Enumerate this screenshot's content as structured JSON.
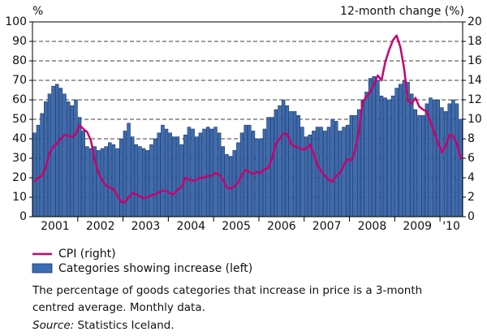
{
  "chart_data": {
    "type": "bar_line",
    "y_unit_label": "%",
    "y2_unit_label": "12-month change (%)",
    "x_labels": [
      "2001",
      "2002",
      "2003",
      "2004",
      "2005",
      "2006",
      "2007",
      "2008",
      "2009",
      "'10"
    ],
    "ylim": [
      0,
      100
    ],
    "yticks": [
      0,
      10,
      20,
      30,
      40,
      50,
      60,
      70,
      80,
      90,
      100
    ],
    "y2lim": [
      0,
      20
    ],
    "y2ticks": [
      0,
      2,
      4,
      6,
      8,
      10,
      12,
      14,
      16,
      18,
      20
    ],
    "grid": true,
    "series": [
      {
        "name": "Categories showing increase (left)",
        "type": "bar",
        "color": "#3a6db5",
        "values": [
          43,
          47,
          53,
          59,
          63,
          67,
          68,
          66,
          63,
          59,
          57,
          60,
          51,
          44,
          36,
          35,
          36,
          34,
          35,
          36,
          38,
          37,
          35,
          40,
          44,
          48,
          41,
          37,
          36,
          35,
          34,
          37,
          40,
          43,
          47,
          45,
          43,
          41,
          41,
          37,
          42,
          46,
          45,
          41,
          43,
          45,
          46,
          45,
          46,
          43,
          36,
          32,
          31,
          34,
          38,
          43,
          47,
          47,
          44,
          40,
          40,
          45,
          51,
          51,
          55,
          57,
          60,
          57,
          54,
          54,
          52,
          46,
          41,
          42,
          44,
          46,
          46,
          44,
          46,
          50,
          49,
          44,
          46,
          47,
          52,
          52,
          55,
          60,
          64,
          71,
          72,
          70,
          62,
          61,
          60,
          62,
          66,
          68,
          70,
          69,
          63,
          55,
          52,
          52,
          58,
          61,
          60,
          60,
          56,
          54,
          58,
          60,
          58,
          50
        ]
      },
      {
        "name": "CPI (right)",
        "type": "line",
        "axis": "y2",
        "color": "#c8006e",
        "values": [
          3.6,
          4.0,
          4.2,
          5.0,
          6.5,
          7.2,
          7.5,
          8.0,
          8.4,
          8.3,
          8.2,
          8.5,
          9.4,
          9.0,
          8.7,
          7.8,
          5.8,
          4.5,
          3.7,
          3.2,
          3.0,
          2.8,
          2.2,
          1.5,
          1.5,
          2.0,
          2.4,
          2.3,
          2.1,
          1.9,
          2.0,
          2.2,
          2.3,
          2.5,
          2.7,
          2.6,
          2.4,
          2.3,
          2.8,
          3.0,
          4.0,
          3.8,
          3.7,
          3.8,
          4.0,
          4.0,
          4.2,
          4.2,
          4.5,
          4.3,
          3.8,
          3.0,
          2.9,
          3.1,
          3.5,
          4.3,
          4.8,
          4.6,
          4.4,
          4.6,
          4.5,
          4.9,
          5.0,
          6.0,
          7.5,
          8.0,
          8.5,
          8.5,
          7.5,
          7.2,
          7.1,
          6.9,
          7.0,
          7.4,
          6.5,
          5.3,
          4.7,
          4.2,
          3.8,
          3.6,
          4.2,
          4.5,
          5.3,
          5.9,
          5.8,
          6.8,
          8.7,
          11.8,
          12.3,
          12.8,
          13.6,
          14.5,
          14.0,
          15.9,
          17.1,
          18.1,
          18.6,
          17.4,
          15.2,
          11.9,
          11.6,
          12.2,
          11.3,
          11.0,
          10.8,
          9.7,
          8.6,
          7.5,
          6.6,
          7.3,
          8.4,
          8.3,
          7.5,
          5.9
        ]
      }
    ],
    "notes": [
      "The percentage of goods categories that increase in price is a 3-month",
      "centred average. Monthly data."
    ],
    "source_label": "Source:",
    "source": "Statistics Iceland."
  }
}
